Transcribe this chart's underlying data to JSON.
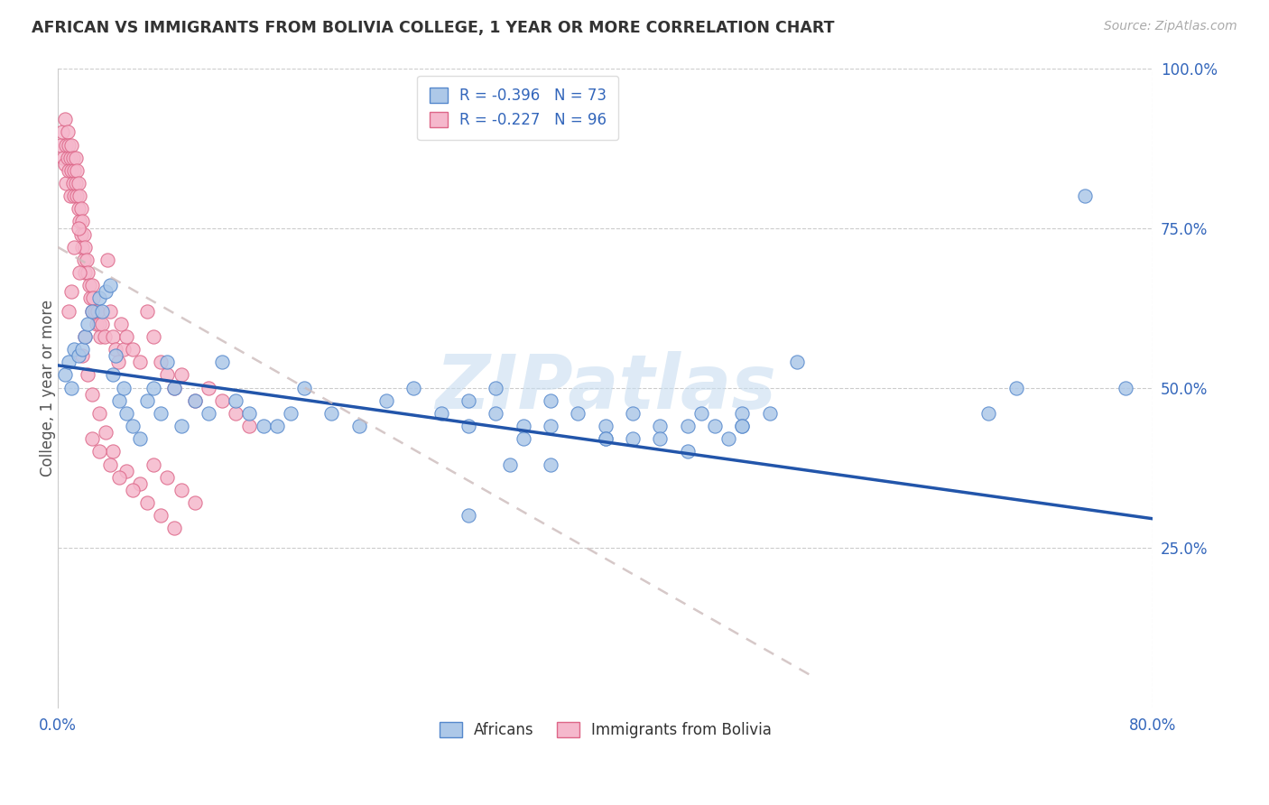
{
  "title": "AFRICAN VS IMMIGRANTS FROM BOLIVIA COLLEGE, 1 YEAR OR MORE CORRELATION CHART",
  "source": "Source: ZipAtlas.com",
  "ylabel": "College, 1 year or more",
  "africans_R": -0.396,
  "africans_N": 73,
  "bolivia_R": -0.227,
  "bolivia_N": 96,
  "africans_color": "#adc8e8",
  "africans_edge": "#5588cc",
  "bolivia_color": "#f5b8cc",
  "bolivia_edge": "#dd6688",
  "trend_africans_color": "#2255aa",
  "trend_bolivia_color": "#cc99aa",
  "legend_label_africans": "Africans",
  "legend_label_bolivia": "Immigrants from Bolivia",
  "watermark": "ZIPatlas",
  "xlim": [
    0.0,
    0.8
  ],
  "ylim": [
    0.0,
    1.0
  ],
  "trend_af_x0": 0.0,
  "trend_af_y0": 0.535,
  "trend_af_x1": 0.8,
  "trend_af_y1": 0.295,
  "trend_bo_x0": 0.0,
  "trend_bo_y0": 0.72,
  "trend_bo_x1": 0.55,
  "trend_bo_y1": 0.05,
  "africans_x": [
    0.005,
    0.008,
    0.01,
    0.012,
    0.015,
    0.018,
    0.02,
    0.022,
    0.025,
    0.03,
    0.032,
    0.035,
    0.038,
    0.04,
    0.042,
    0.045,
    0.048,
    0.05,
    0.055,
    0.06,
    0.065,
    0.07,
    0.075,
    0.08,
    0.085,
    0.09,
    0.1,
    0.11,
    0.12,
    0.13,
    0.14,
    0.15,
    0.16,
    0.17,
    0.18,
    0.2,
    0.22,
    0.24,
    0.26,
    0.28,
    0.3,
    0.3,
    0.32,
    0.32,
    0.34,
    0.34,
    0.36,
    0.36,
    0.38,
    0.4,
    0.4,
    0.42,
    0.44,
    0.44,
    0.46,
    0.46,
    0.47,
    0.48,
    0.49,
    0.5,
    0.5,
    0.52,
    0.54,
    0.36,
    0.4,
    0.3,
    0.68,
    0.7,
    0.75,
    0.78,
    0.5,
    0.42,
    0.33
  ],
  "africans_y": [
    0.52,
    0.54,
    0.5,
    0.56,
    0.55,
    0.56,
    0.58,
    0.6,
    0.62,
    0.64,
    0.62,
    0.65,
    0.66,
    0.52,
    0.55,
    0.48,
    0.5,
    0.46,
    0.44,
    0.42,
    0.48,
    0.5,
    0.46,
    0.54,
    0.5,
    0.44,
    0.48,
    0.46,
    0.54,
    0.48,
    0.46,
    0.44,
    0.44,
    0.46,
    0.5,
    0.46,
    0.44,
    0.48,
    0.5,
    0.46,
    0.44,
    0.48,
    0.46,
    0.5,
    0.44,
    0.42,
    0.44,
    0.48,
    0.46,
    0.44,
    0.42,
    0.46,
    0.44,
    0.42,
    0.44,
    0.4,
    0.46,
    0.44,
    0.42,
    0.46,
    0.44,
    0.46,
    0.54,
    0.38,
    0.42,
    0.3,
    0.46,
    0.5,
    0.8,
    0.5,
    0.44,
    0.42,
    0.38
  ],
  "bolivia_x": [
    0.002,
    0.003,
    0.004,
    0.005,
    0.005,
    0.006,
    0.006,
    0.007,
    0.007,
    0.008,
    0.008,
    0.009,
    0.009,
    0.01,
    0.01,
    0.011,
    0.011,
    0.012,
    0.012,
    0.013,
    0.013,
    0.014,
    0.014,
    0.015,
    0.015,
    0.016,
    0.016,
    0.017,
    0.017,
    0.018,
    0.018,
    0.019,
    0.019,
    0.02,
    0.02,
    0.021,
    0.022,
    0.023,
    0.024,
    0.025,
    0.025,
    0.026,
    0.027,
    0.028,
    0.029,
    0.03,
    0.031,
    0.032,
    0.034,
    0.036,
    0.038,
    0.04,
    0.042,
    0.044,
    0.046,
    0.048,
    0.05,
    0.055,
    0.06,
    0.065,
    0.07,
    0.075,
    0.08,
    0.085,
    0.09,
    0.1,
    0.11,
    0.12,
    0.13,
    0.14,
    0.015,
    0.012,
    0.016,
    0.01,
    0.008,
    0.02,
    0.018,
    0.022,
    0.025,
    0.03,
    0.035,
    0.04,
    0.05,
    0.06,
    0.07,
    0.08,
    0.09,
    0.1,
    0.025,
    0.03,
    0.038,
    0.045,
    0.055,
    0.065,
    0.075,
    0.085
  ],
  "bolivia_y": [
    0.88,
    0.9,
    0.86,
    0.85,
    0.92,
    0.88,
    0.82,
    0.86,
    0.9,
    0.84,
    0.88,
    0.8,
    0.86,
    0.84,
    0.88,
    0.82,
    0.86,
    0.8,
    0.84,
    0.82,
    0.86,
    0.8,
    0.84,
    0.82,
    0.78,
    0.8,
    0.76,
    0.78,
    0.74,
    0.76,
    0.72,
    0.74,
    0.7,
    0.72,
    0.68,
    0.7,
    0.68,
    0.66,
    0.64,
    0.66,
    0.62,
    0.64,
    0.62,
    0.6,
    0.62,
    0.6,
    0.58,
    0.6,
    0.58,
    0.7,
    0.62,
    0.58,
    0.56,
    0.54,
    0.6,
    0.56,
    0.58,
    0.56,
    0.54,
    0.62,
    0.58,
    0.54,
    0.52,
    0.5,
    0.52,
    0.48,
    0.5,
    0.48,
    0.46,
    0.44,
    0.75,
    0.72,
    0.68,
    0.65,
    0.62,
    0.58,
    0.55,
    0.52,
    0.49,
    0.46,
    0.43,
    0.4,
    0.37,
    0.35,
    0.38,
    0.36,
    0.34,
    0.32,
    0.42,
    0.4,
    0.38,
    0.36,
    0.34,
    0.32,
    0.3,
    0.28
  ]
}
